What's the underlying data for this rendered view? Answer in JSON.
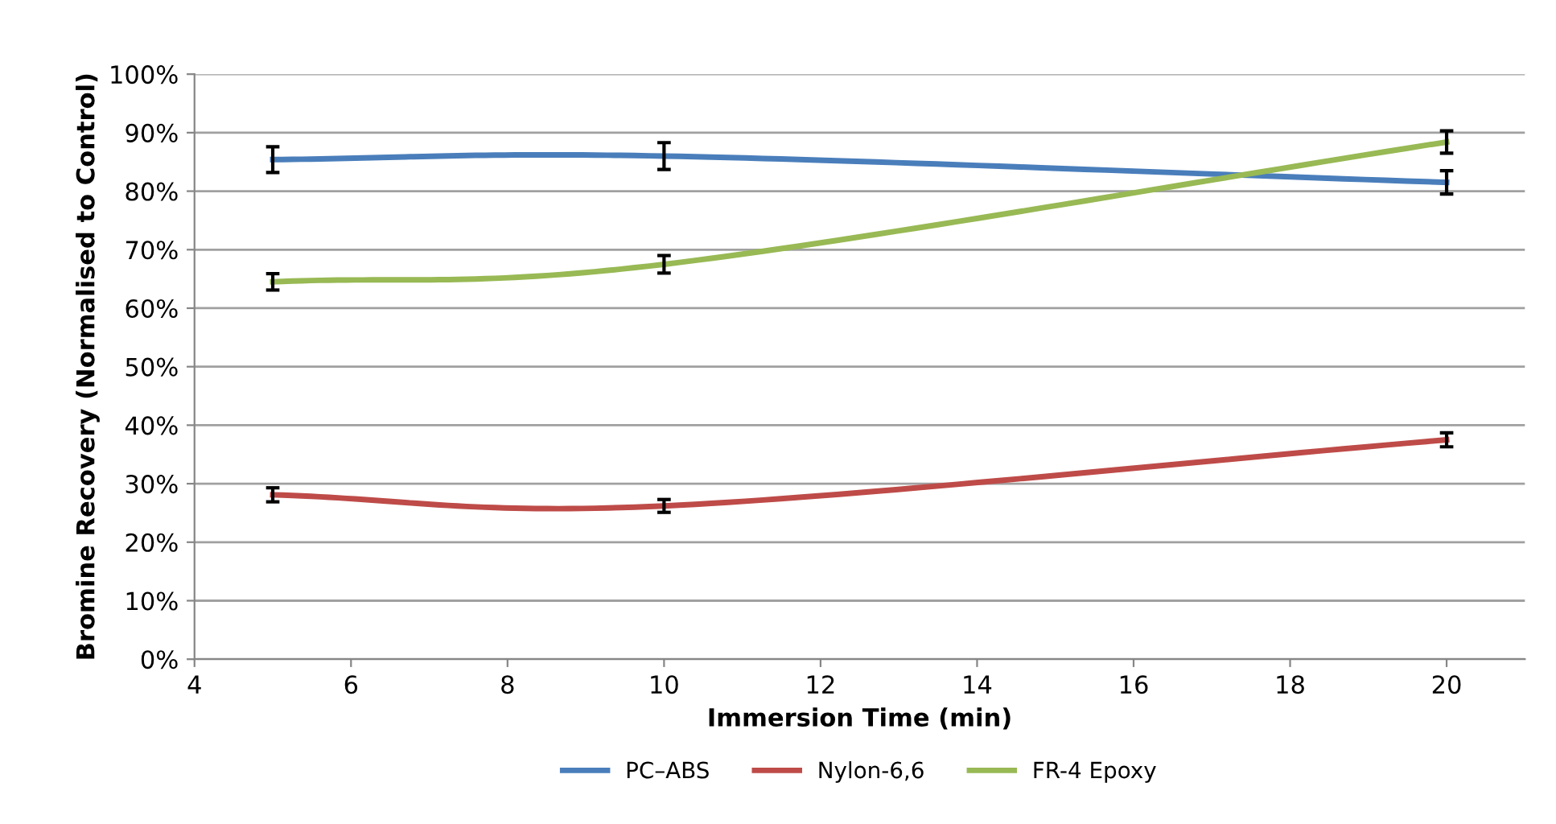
{
  "chart_data": {
    "type": "line",
    "xlabel": "Immersion Time (min)",
    "ylabel": "Bromine Recovery (Normalised to Control)",
    "x": [
      5,
      10,
      20
    ],
    "series": [
      {
        "name": "PC–ABS",
        "color": "#4a7ebb",
        "values": [
          85.4,
          86,
          81.5
        ],
        "errors": [
          2.2,
          2.3,
          2
        ]
      },
      {
        "name": "Nylon-6,6",
        "color": "#be4b48",
        "values": [
          28.1,
          26.2,
          37.5
        ],
        "errors": [
          1.2,
          1.1,
          1.2
        ]
      },
      {
        "name": "FR-4 Epoxy",
        "color": "#98b954",
        "values": [
          64.5,
          67.5,
          88.4
        ],
        "errors": [
          1.4,
          1.5,
          1.9
        ]
      }
    ],
    "xlim": [
      4,
      21
    ],
    "xticks": [
      4,
      6,
      8,
      10,
      12,
      14,
      16,
      18,
      20
    ],
    "ylim": [
      0,
      100
    ],
    "yticks": [
      {
        "value": 0,
        "label": "0%"
      },
      {
        "value": 10,
        "label": "10%"
      },
      {
        "value": 20,
        "label": "20%"
      },
      {
        "value": 30,
        "label": "30%"
      },
      {
        "value": 40,
        "label": "40%"
      },
      {
        "value": 50,
        "label": "50%"
      },
      {
        "value": 60,
        "label": "60%"
      },
      {
        "value": 70,
        "label": "70%"
      },
      {
        "value": 80,
        "label": "80%"
      },
      {
        "value": 90,
        "label": "90%"
      },
      {
        "value": 100,
        "label": "100%"
      }
    ],
    "grid": "y",
    "legend": "bottom",
    "marker": "none",
    "line_style": "solid"
  }
}
